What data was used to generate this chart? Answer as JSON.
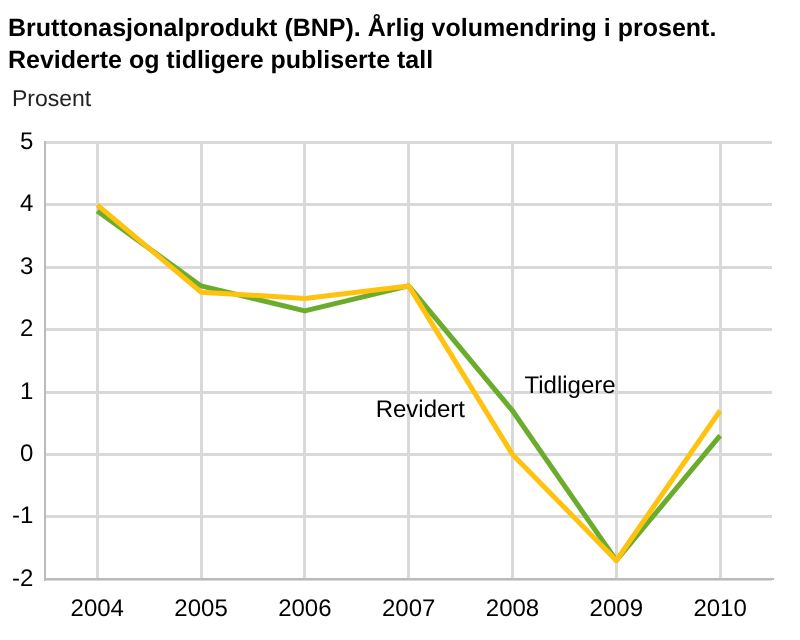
{
  "chart_data": {
    "type": "line",
    "title": "Bruttonasjonalprodukt (BNP). Årlig volumendring i prosent.",
    "subtitle": "Reviderte og tidligere publiserte tall",
    "ylabel": "Prosent",
    "categories": [
      "2004",
      "2005",
      "2006",
      "2007",
      "2008",
      "2009",
      "2010"
    ],
    "series": [
      {
        "name": "Revidert",
        "color": "#ffc20e",
        "values": [
          4.0,
          2.6,
          2.5,
          2.7,
          0.0,
          -1.7,
          0.7
        ]
      },
      {
        "name": "Tidligere",
        "color": "#6bac2c",
        "values": [
          3.9,
          2.7,
          2.3,
          2.7,
          0.7,
          -1.7,
          0.3
        ]
      }
    ],
    "ylim": [
      -2,
      5
    ],
    "yticks": [
      -2,
      -1,
      0,
      1,
      2,
      3,
      4,
      5
    ],
    "grid": true,
    "legend": false,
    "marker": "none",
    "line_style": "solid"
  }
}
